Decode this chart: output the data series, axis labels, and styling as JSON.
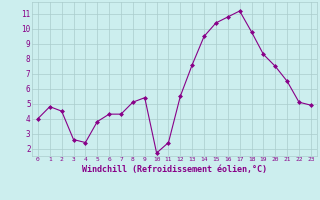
{
  "x": [
    0,
    1,
    2,
    3,
    4,
    5,
    6,
    7,
    8,
    9,
    10,
    11,
    12,
    13,
    14,
    15,
    16,
    17,
    18,
    19,
    20,
    21,
    22,
    23
  ],
  "y": [
    4.0,
    4.8,
    4.5,
    2.6,
    2.4,
    3.8,
    4.3,
    4.3,
    5.1,
    5.4,
    1.7,
    2.4,
    5.5,
    7.6,
    9.5,
    10.4,
    10.8,
    11.2,
    9.8,
    8.3,
    7.5,
    6.5,
    5.1,
    4.9
  ],
  "line_color": "#880088",
  "marker": "D",
  "marker_size": 2.0,
  "bg_color": "#cceeee",
  "grid_color": "#aacccc",
  "xlabel": "Windchill (Refroidissement éolien,°C)",
  "xlabel_color": "#880088",
  "tick_color": "#880088",
  "ylim": [
    1.5,
    11.8
  ],
  "yticks": [
    2,
    3,
    4,
    5,
    6,
    7,
    8,
    9,
    10,
    11
  ],
  "xlim": [
    -0.5,
    23.5
  ],
  "xticks": [
    0,
    1,
    2,
    3,
    4,
    5,
    6,
    7,
    8,
    9,
    10,
    11,
    12,
    13,
    14,
    15,
    16,
    17,
    18,
    19,
    20,
    21,
    22,
    23
  ]
}
